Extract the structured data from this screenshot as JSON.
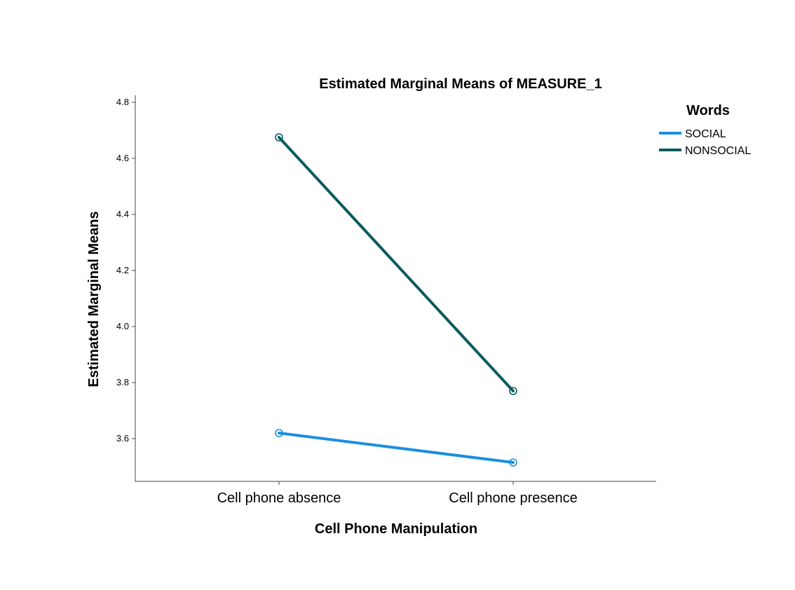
{
  "chart_data": {
    "type": "line",
    "title": "Estimated Marginal Means of MEASURE_1",
    "xlabel": "Cell Phone Manipulation",
    "ylabel": "Estimated Marginal Means",
    "categories": [
      "Cell phone absence",
      "Cell phone presence"
    ],
    "yticks": [
      "3.6",
      "3.8",
      "4.0",
      "4.2",
      "4.4",
      "4.6",
      "4.8"
    ],
    "ylim": [
      3.45,
      4.82
    ],
    "grid": false,
    "legend": {
      "title": "Words",
      "placement": "right"
    },
    "series": [
      {
        "name": "SOCIAL",
        "values": [
          3.62,
          3.515
        ],
        "color": "#1a8fe0"
      },
      {
        "name": "NONSOCIAL",
        "values": [
          4.675,
          3.77
        ],
        "color": "#0b5a5f"
      }
    ]
  }
}
